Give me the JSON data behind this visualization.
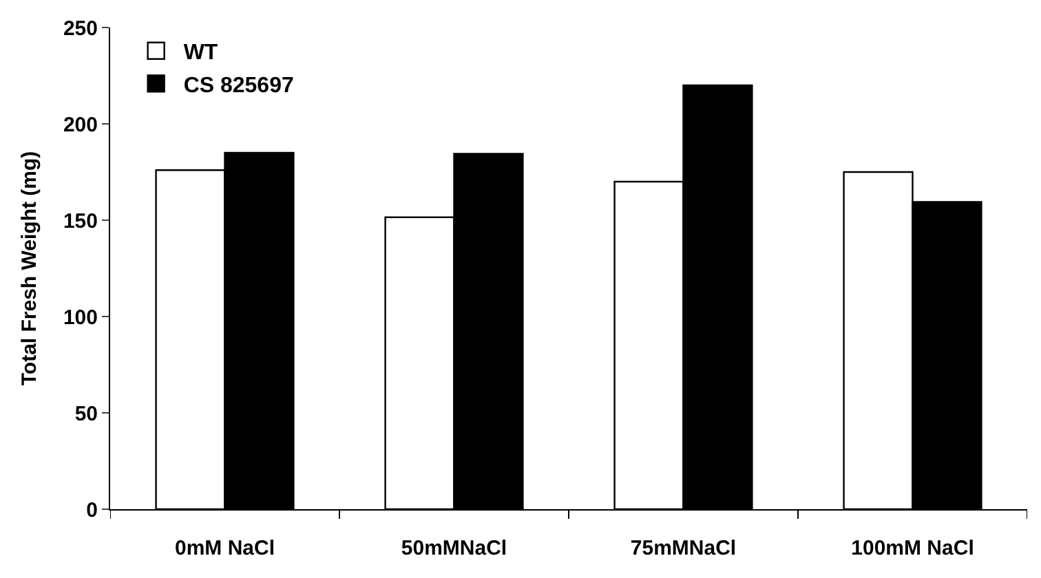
{
  "chart_data": {
    "type": "bar",
    "ylabel": "Total Fresh Weight (mg)",
    "categories": [
      "0mM NaCl",
      "50mMNaCl",
      "75mMNaCl",
      "100mM NaCl"
    ],
    "series": [
      {
        "name": "WT",
        "color": "#ffffff",
        "values": [
          176,
          151.5,
          170,
          175
        ]
      },
      {
        "name": "CS 825697",
        "color": "#000000",
        "values": [
          185,
          184.5,
          220,
          159.5
        ]
      }
    ],
    "ylim": [
      0,
      250
    ],
    "yticks": [
      0,
      50,
      100,
      150,
      200,
      250
    ],
    "legend": "top left"
  }
}
